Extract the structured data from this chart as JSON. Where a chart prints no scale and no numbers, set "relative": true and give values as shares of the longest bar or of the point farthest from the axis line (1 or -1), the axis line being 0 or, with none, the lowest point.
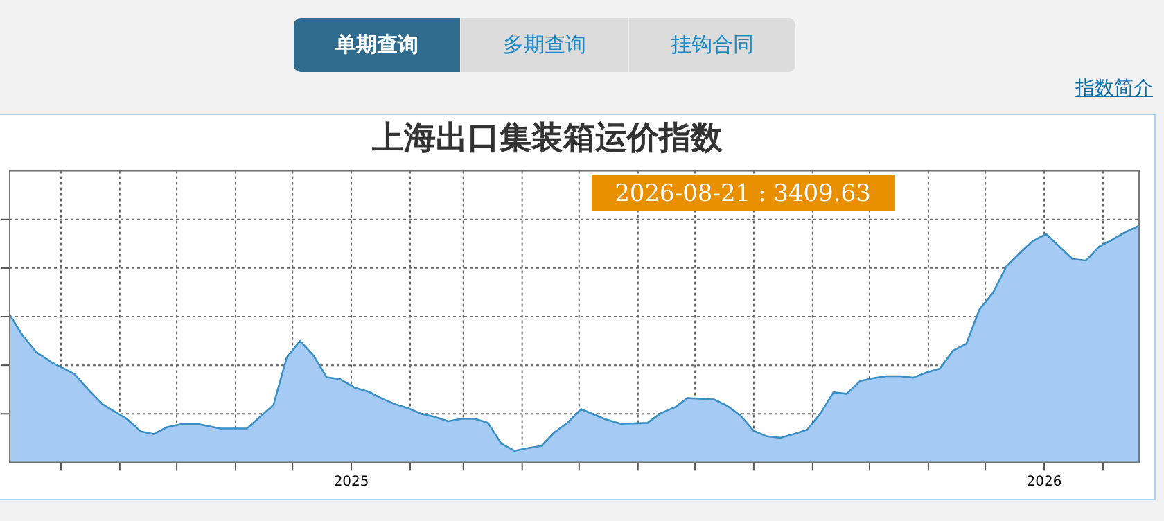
{
  "chart_data": {
    "type": "area",
    "title": "上海出口集装箱运价指数",
    "relative": true,
    "grid": true,
    "xlim": [
      "2024-07-05",
      "2026-02-20"
    ],
    "xticks": [
      {
        "value": "2024-08-01",
        "label": null
      },
      {
        "value": "2024-09-01",
        "label": null
      },
      {
        "value": "2024-10-01",
        "label": null
      },
      {
        "value": "2024-11-01",
        "label": null
      },
      {
        "value": "2024-12-01",
        "label": null
      },
      {
        "value": "2025-01-01",
        "label": "2025"
      },
      {
        "value": "2025-02-01",
        "label": null
      },
      {
        "value": "2025-03-01",
        "label": null
      },
      {
        "value": "2025-04-01",
        "label": null
      },
      {
        "value": "2025-05-01",
        "label": null
      },
      {
        "value": "2025-06-01",
        "label": null
      },
      {
        "value": "2025-07-01",
        "label": null
      },
      {
        "value": "2025-08-01",
        "label": null
      },
      {
        "value": "2025-09-01",
        "label": null
      },
      {
        "value": "2025-10-01",
        "label": null
      },
      {
        "value": "2025-11-01",
        "label": null
      },
      {
        "value": "2025-12-01",
        "label": null
      },
      {
        "value": "2026-01-01",
        "label": "2026"
      },
      {
        "value": "2026-02-01",
        "label": null
      }
    ],
    "x": [
      "2024-07-05",
      "2024-07-12",
      "2024-07-19",
      "2024-07-27",
      "2024-08-08",
      "2024-08-15",
      "2024-08-23",
      "2024-09-05",
      "2024-09-12",
      "2024-09-19",
      "2024-09-26",
      "2024-10-03",
      "2024-10-13",
      "2024-10-24",
      "2024-11-07",
      "2024-11-21",
      "2024-11-28",
      "2024-12-05",
      "2024-12-12",
      "2024-12-19",
      "2024-12-26",
      "2025-01-03",
      "2025-01-10",
      "2025-01-17",
      "2025-01-24",
      "2025-01-31",
      "2025-02-07",
      "2025-02-14",
      "2025-02-21",
      "2025-02-28",
      "2025-03-07",
      "2025-03-14",
      "2025-03-21",
      "2025-03-28",
      "2025-04-03",
      "2025-04-11",
      "2025-04-18",
      "2025-04-25",
      "2025-05-02",
      "2025-05-15",
      "2025-05-23",
      "2025-06-06",
      "2025-06-13",
      "2025-06-21",
      "2025-06-27",
      "2025-07-11",
      "2025-07-18",
      "2025-07-25",
      "2025-08-01",
      "2025-08-08",
      "2025-08-15",
      "2025-08-22",
      "2025-08-29",
      "2025-09-05",
      "2025-09-12",
      "2025-09-19",
      "2025-09-26",
      "2025-10-03",
      "2025-10-10",
      "2025-10-17",
      "2025-10-24",
      "2025-10-31",
      "2025-11-07",
      "2025-11-14",
      "2025-11-21",
      "2025-11-28",
      "2025-12-05",
      "2025-12-12",
      "2025-12-19",
      "2025-12-26",
      "2026-01-02",
      "2026-01-09",
      "2026-01-16",
      "2026-01-23",
      "2026-01-30",
      "2026-02-06",
      "2026-02-13",
      "2026-02-20"
    ],
    "series": [
      {
        "color": "#a5cbf5",
        "values": [
          0.624,
          0.534,
          0.466,
          0.423,
          0.374,
          0.311,
          0.245,
          0.182,
          0.131,
          0.12,
          0.149,
          0.161,
          0.161,
          0.143,
          0.143,
          0.243,
          0.444,
          0.513,
          0.452,
          0.36,
          0.352,
          0.315,
          0.299,
          0.27,
          0.246,
          0.229,
          0.205,
          0.192,
          0.174,
          0.184,
          0.184,
          0.167,
          0.079,
          0.049,
          0.059,
          0.069,
          0.127,
          0.168,
          0.225,
          0.182,
          0.163,
          0.167,
          0.208,
          0.235,
          0.272,
          0.266,
          0.239,
          0.198,
          0.133,
          0.11,
          0.104,
          0.12,
          0.137,
          0.205,
          0.296,
          0.29,
          0.344,
          0.356,
          0.364,
          0.364,
          0.358,
          0.38,
          0.396,
          0.472,
          0.501,
          0.648,
          0.716,
          0.827,
          0.883,
          0.935,
          0.965,
          0.912,
          0.859,
          0.853,
          0.912,
          0.941,
          0.974,
          1.0
        ]
      }
    ],
    "annotations": [
      "2026-08-21 : 3409.63",
      "单期查询",
      "多期查询",
      "挂钩合同",
      "指数简介"
    ]
  }
}
